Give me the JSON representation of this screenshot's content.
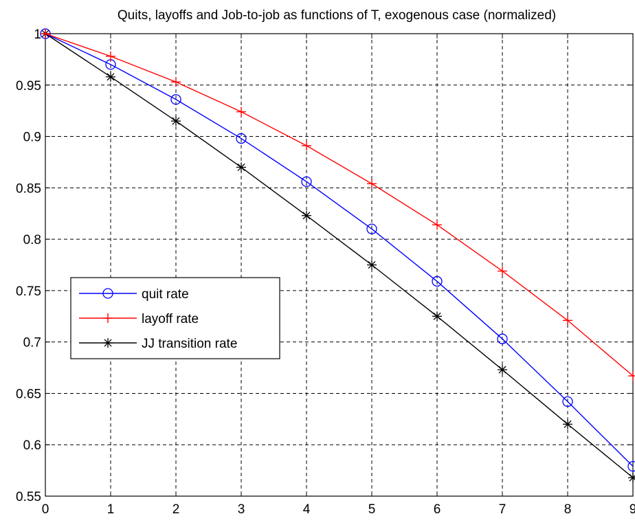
{
  "chart_data": {
    "type": "line",
    "title": "Quits, layoffs and Job-to-job as functions of T, exogenous case (normalized)",
    "xlabel": "",
    "ylabel": "",
    "xlim": [
      0,
      9
    ],
    "ylim": [
      0.55,
      1
    ],
    "xticks": [
      0,
      1,
      2,
      3,
      4,
      5,
      6,
      7,
      8,
      9
    ],
    "yticks": [
      0.55,
      0.6,
      0.65,
      0.7,
      0.75,
      0.8,
      0.85,
      0.9,
      0.95,
      1
    ],
    "ytick_labels": [
      "0.55",
      "0.6",
      "0.65",
      "0.7",
      "0.75",
      "0.8",
      "0.85",
      "0.9",
      "0.95",
      "1"
    ],
    "grid": true,
    "legend_position": "middle-left",
    "x": [
      0,
      1,
      2,
      3,
      4,
      5,
      6,
      7,
      8,
      9
    ],
    "series": [
      {
        "name": "quit rate",
        "color": "#0000ff",
        "marker": "circle",
        "values": [
          1.0,
          0.97,
          0.936,
          0.898,
          0.856,
          0.81,
          0.759,
          0.703,
          0.642,
          0.579
        ]
      },
      {
        "name": "layoff rate",
        "color": "#ff0000",
        "marker": "plus",
        "values": [
          1.0,
          0.978,
          0.953,
          0.924,
          0.891,
          0.854,
          0.814,
          0.769,
          0.721,
          0.667
        ]
      },
      {
        "name": "JJ transition rate",
        "color": "#000000",
        "marker": "star",
        "values": [
          1.0,
          0.958,
          0.915,
          0.87,
          0.823,
          0.775,
          0.725,
          0.673,
          0.62,
          0.568
        ]
      }
    ]
  }
}
